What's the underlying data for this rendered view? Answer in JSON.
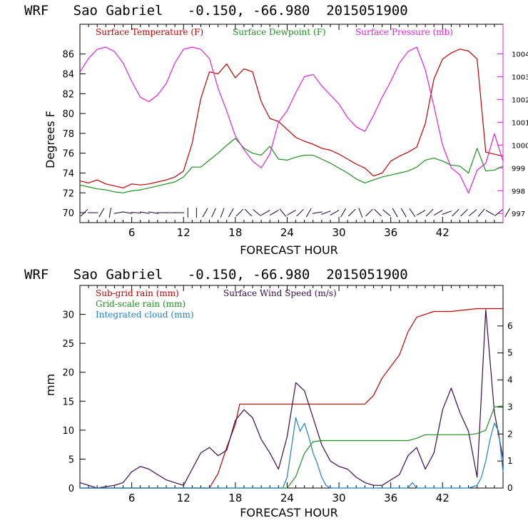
{
  "chart_data": [
    {
      "type": "line",
      "title": "WRF   Sao Gabriel   -0.150, -66.980  2015051900",
      "xlabel": "FORECAST HOUR",
      "ylabel": "Degrees F",
      "xlim": [
        0,
        49
      ],
      "xticks": [
        6,
        12,
        18,
        24,
        30,
        36,
        42
      ],
      "xtick_labels": [
        "6",
        "12",
        "18",
        "24",
        "30",
        "36",
        "42"
      ],
      "ylim": [
        69,
        89
      ],
      "yticks": [
        70,
        72,
        74,
        76,
        78,
        80,
        82,
        84,
        86
      ],
      "ytick_labels": [
        "70",
        "72",
        "74",
        "76",
        "78",
        "80",
        "82",
        "84",
        "86"
      ],
      "y2lim": [
        996.6,
        1005.3
      ],
      "y2ticks": [
        997,
        998,
        999,
        1000,
        1001,
        1002,
        1003,
        1004
      ],
      "y2tick_labels": [
        "997",
        "998",
        "999",
        "1000",
        "1001",
        "1002",
        "1003",
        "1004"
      ],
      "legend": [
        {
          "name": "Surface Temperature (F)",
          "color": "#c00000"
        },
        {
          "name": "Surface Dewpoint (F)",
          "color": "#1f8f1f"
        },
        {
          "name": "Surface Pressure (mb)",
          "color": "#e020e0"
        }
      ],
      "series": [
        {
          "name": "Surface Temperature (F)",
          "axis": "left",
          "color": "#c00000",
          "x": [
            0,
            1,
            2,
            3,
            4,
            5,
            6,
            7,
            8,
            9,
            10,
            11,
            12,
            13,
            14,
            15,
            16,
            17,
            18,
            19,
            20,
            21,
            22,
            23,
            24,
            25,
            26,
            27,
            28,
            29,
            30,
            31,
            32,
            33,
            34,
            35,
            36,
            37,
            38,
            39,
            40,
            41,
            42,
            43,
            44,
            45,
            46,
            47,
            48,
            49
          ],
          "values": [
            73.2,
            73.0,
            73.3,
            72.9,
            72.7,
            72.5,
            72.9,
            72.8,
            72.9,
            73.1,
            73.3,
            73.6,
            74.2,
            77.0,
            81.5,
            84.2,
            84.0,
            85.0,
            83.6,
            84.5,
            84.2,
            81.2,
            79.5,
            79.2,
            78.4,
            77.6,
            77.2,
            76.9,
            76.5,
            76.3,
            75.9,
            75.4,
            74.9,
            74.5,
            73.7,
            74.0,
            75.2,
            75.7,
            76.1,
            76.6,
            79.0,
            83.5,
            85.5,
            86.1,
            86.5,
            86.3,
            85.5,
            76.1,
            75.9,
            75.7
          ]
        },
        {
          "name": "Surface Dewpoint (F)",
          "axis": "left",
          "color": "#1f8f1f",
          "x": [
            0,
            1,
            2,
            3,
            4,
            5,
            6,
            7,
            8,
            9,
            10,
            11,
            12,
            13,
            14,
            15,
            16,
            17,
            18,
            19,
            20,
            21,
            22,
            23,
            24,
            25,
            26,
            27,
            28,
            29,
            30,
            31,
            32,
            33,
            34,
            35,
            36,
            37,
            38,
            39,
            40,
            41,
            42,
            43,
            44,
            45,
            46,
            47,
            48,
            49
          ],
          "values": [
            72.8,
            72.6,
            72.4,
            72.3,
            72.1,
            72.0,
            72.2,
            72.3,
            72.5,
            72.7,
            72.9,
            73.1,
            73.6,
            74.6,
            74.6,
            75.3,
            76.0,
            76.8,
            77.5,
            76.5,
            76.0,
            75.8,
            76.7,
            75.4,
            75.3,
            75.6,
            75.8,
            75.8,
            75.4,
            75.0,
            74.5,
            74.0,
            73.4,
            73.0,
            73.3,
            73.6,
            73.8,
            74.0,
            74.2,
            74.6,
            75.3,
            75.5,
            75.2,
            74.8,
            74.7,
            74.0,
            76.5,
            74.2,
            74.3,
            74.7
          ]
        },
        {
          "name": "Surface Pressure (mb)",
          "axis": "right",
          "color": "#e020e0",
          "x": [
            0,
            1,
            2,
            3,
            4,
            5,
            6,
            7,
            8,
            9,
            10,
            11,
            12,
            13,
            14,
            15,
            16,
            17,
            18,
            19,
            20,
            21,
            22,
            23,
            24,
            25,
            26,
            27,
            28,
            29,
            30,
            31,
            32,
            33,
            34,
            35,
            36,
            37,
            38,
            39,
            40,
            41,
            42,
            43,
            44,
            45,
            46,
            47,
            48,
            49
          ],
          "values": [
            1003.2,
            1003.8,
            1004.2,
            1004.3,
            1004.1,
            1003.6,
            1002.8,
            1002.1,
            1001.9,
            1002.2,
            1002.7,
            1003.6,
            1004.2,
            1004.3,
            1004.2,
            1003.8,
            1002.5,
            1001.5,
            1000.4,
            999.8,
            999.3,
            999.0,
            999.6,
            1001.0,
            1001.5,
            1002.3,
            1003.0,
            1003.1,
            1002.6,
            1002.2,
            1001.8,
            1001.2,
            1000.8,
            1000.6,
            1001.3,
            1002.1,
            1002.8,
            1003.6,
            1004.1,
            1004.3,
            1003.3,
            1001.7,
            1000.0,
            999.0,
            998.7,
            997.9,
            998.9,
            999.2,
            1000.5,
            999.3
          ]
        }
      ],
      "wind_barb_directions": [
        45,
        90,
        30,
        10,
        80,
        100,
        95,
        100,
        100,
        90,
        90,
        90,
        0,
        180,
        30,
        25,
        20,
        30,
        45,
        135,
        130,
        60,
        60,
        140,
        60,
        45,
        30,
        80,
        70,
        60,
        30,
        45,
        160,
        45,
        135,
        130,
        150,
        150,
        145,
        60,
        45,
        60,
        70,
        45,
        45,
        50,
        40,
        120,
        50,
        30
      ]
    },
    {
      "type": "line",
      "title": "WRF   Sao Gabriel   -0.150, -66.980  2015051900",
      "xlabel": "FORECAST HOUR",
      "ylabel": "mm",
      "xlim": [
        0,
        49
      ],
      "xticks": [
        6,
        12,
        18,
        24,
        30,
        36,
        42
      ],
      "xtick_labels": [
        "6",
        "12",
        "18",
        "24",
        "30",
        "36",
        "42"
      ],
      "ylim": [
        0,
        35
      ],
      "yticks": [
        0,
        5,
        10,
        15,
        20,
        25,
        30
      ],
      "ytick_labels": [
        "0",
        "5",
        "10",
        "15",
        "20",
        "25",
        "30"
      ],
      "y2lim": [
        0,
        7.5
      ],
      "y2ticks": [
        0,
        1,
        2,
        3,
        4,
        5,
        6
      ],
      "y2tick_labels": [
        "0",
        "1",
        "2",
        "3",
        "4",
        "5",
        "6"
      ],
      "legend": [
        {
          "name": "Sub-grid rain (mm)",
          "color": "#c00000"
        },
        {
          "name": "Surface Wind Speed (m/s)",
          "color": "#3a0a4a"
        },
        {
          "name": "Grid-scale rain (mm)",
          "color": "#1f8f1f"
        },
        {
          "name": "Integrated cloud (mm)",
          "color": "#1c7fcf"
        }
      ],
      "series": [
        {
          "name": "Sub-grid rain (mm)",
          "axis": "left",
          "color": "#c00000",
          "x": [
            0,
            15,
            16,
            17,
            18,
            18.5,
            19,
            20,
            25,
            30,
            33,
            34,
            35,
            36,
            37,
            38,
            39,
            40,
            41,
            43,
            46,
            48,
            49
          ],
          "values": [
            0,
            0,
            2.5,
            7,
            11,
            14.5,
            14.5,
            14.5,
            14.5,
            14.5,
            14.5,
            16,
            19,
            21,
            23,
            27,
            29.5,
            30,
            30.5,
            30.5,
            31,
            31,
            31
          ]
        },
        {
          "name": "Surface Wind Speed (m/s)",
          "axis": "right",
          "color": "#3a0a4a",
          "x": [
            0,
            1,
            2,
            3,
            4,
            5,
            6,
            7,
            8,
            9,
            10,
            11,
            12,
            13,
            14,
            15,
            16,
            17,
            18,
            19,
            20,
            21,
            22,
            23,
            24,
            25,
            26,
            27,
            28,
            29,
            30,
            31,
            32,
            33,
            34,
            35,
            36,
            37,
            38,
            39,
            40,
            41,
            42,
            43,
            44,
            45,
            46,
            47,
            48,
            49
          ],
          "values": [
            0.2,
            0.1,
            0.0,
            0.05,
            0.1,
            0.2,
            0.6,
            0.8,
            0.7,
            0.5,
            0.3,
            0.2,
            0.1,
            0.7,
            1.3,
            1.5,
            1.2,
            1.4,
            2.5,
            2.9,
            2.6,
            1.8,
            1.3,
            0.7,
            1.9,
            3.9,
            3.6,
            2.6,
            1.6,
            1.0,
            0.8,
            0.7,
            0.4,
            0.2,
            0.1,
            0.1,
            0.3,
            0.5,
            1.2,
            1.5,
            0.7,
            1.3,
            2.9,
            3.7,
            2.8,
            2.1,
            0.4,
            6.6,
            2.8,
            1.1
          ]
        },
        {
          "name": "Grid-scale rain (mm)",
          "axis": "left",
          "color": "#1f8f1f",
          "x": [
            0,
            24,
            25,
            26,
            27,
            28,
            30,
            35,
            38,
            39,
            40,
            41,
            45,
            46,
            47,
            48,
            49
          ],
          "values": [
            0,
            0,
            2,
            6,
            8,
            8.2,
            8.2,
            8.2,
            8.2,
            8.6,
            9.2,
            9.2,
            9.2,
            9.4,
            10,
            14,
            14.2
          ]
        },
        {
          "name": "Integrated cloud (mm)",
          "axis": "right",
          "color": "#1c7fcf",
          "x": [
            0,
            23.5,
            24,
            24.5,
            25,
            25.5,
            26,
            26.5,
            27,
            27.5,
            28,
            28.5,
            29,
            35,
            38,
            38.5,
            39,
            45,
            46,
            46.5,
            47,
            47.5,
            48,
            48.5,
            49
          ],
          "values": [
            0,
            0,
            0.4,
            1.5,
            2.6,
            2.1,
            2.4,
            1.9,
            1.3,
            0.9,
            0.4,
            0.1,
            0,
            0,
            0,
            0.2,
            0,
            0,
            0.1,
            0.4,
            1.0,
            1.8,
            2.4,
            2.1,
            0.6
          ]
        }
      ]
    }
  ]
}
